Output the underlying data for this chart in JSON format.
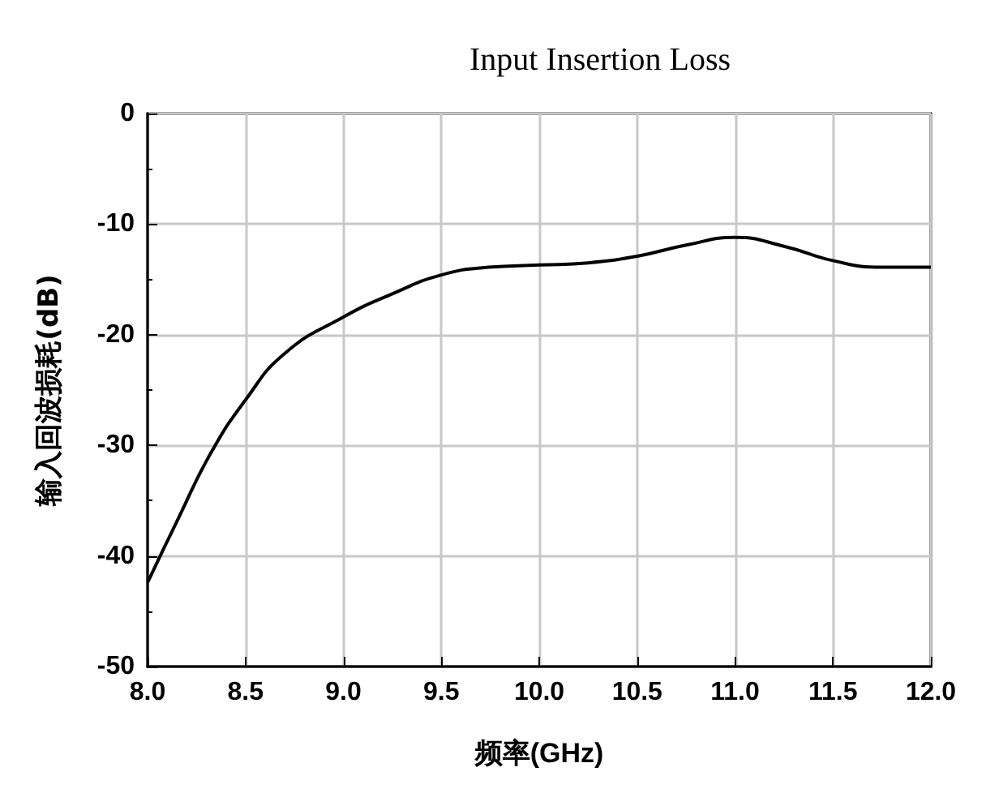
{
  "chart_data": {
    "type": "line",
    "title": "Input Insertion Loss",
    "xlabel": "频率(GHz)",
    "ylabel": "输入回波损耗(dB)",
    "xlim": [
      8,
      12
    ],
    "xticks": [
      {
        "value": 8,
        "label": "8.0"
      },
      {
        "value": 8.5,
        "label": "8.5"
      },
      {
        "value": 9,
        "label": "9.0"
      },
      {
        "value": 9.5,
        "label": "9.5"
      },
      {
        "value": 10,
        "label": "10.0"
      },
      {
        "value": 10.5,
        "label": "10.5"
      },
      {
        "value": 11,
        "label": "11.0"
      },
      {
        "value": 11.5,
        "label": "11.5"
      },
      {
        "value": 12,
        "label": "12.0"
      }
    ],
    "ylim": [
      -50,
      0
    ],
    "yticks": [
      -50,
      -40,
      -30,
      -20,
      -10,
      0
    ],
    "grid": true,
    "marker": "none",
    "line_style": "solid",
    "series": [
      {
        "color": "#000000",
        "x": [
          8,
          8.16,
          8.32,
          8.5,
          8.7,
          9,
          9.25,
          9.5,
          9.74,
          10,
          10.25,
          10.5,
          10.75,
          11,
          11.25,
          11.5,
          11.75,
          12
        ],
        "values": [
          -42.4,
          -36.5,
          -30.8,
          -25.9,
          -21.7,
          -18.4,
          -16.3,
          -14.6,
          -13.9,
          -13.7,
          -13.5,
          -12.9,
          -11.9,
          -11.2,
          -12,
          -13.3,
          -13.9,
          -13.9
        ]
      }
    ]
  }
}
